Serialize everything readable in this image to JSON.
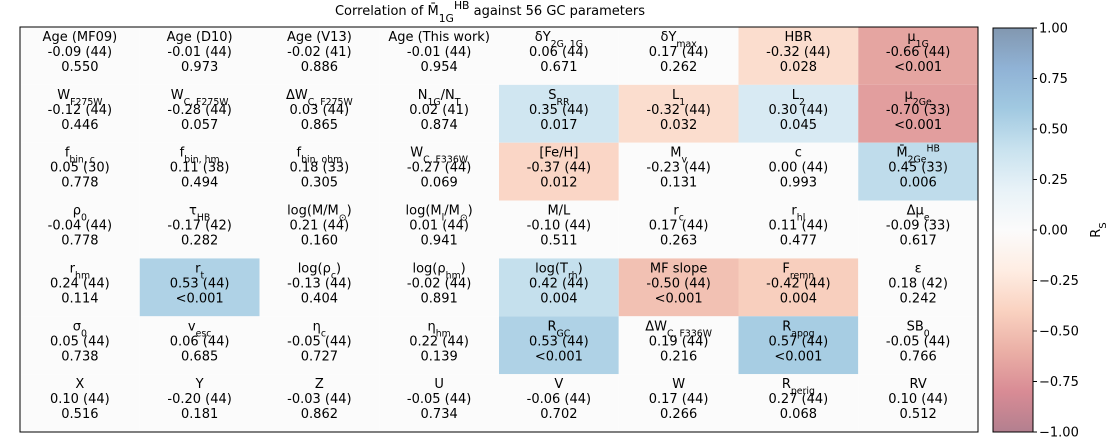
{
  "chart_data": {
    "type": "heatmap",
    "title": [
      "Correlation of M̄",
      {
        "sub": "1G"
      },
      {
        "sup": "HB"
      },
      " against 56 GC parameters"
    ],
    "colormap": [
      "#67001f",
      "#b2182b",
      "#d6604d",
      "#f4a582",
      "#fddbc7",
      "#f7f7f7",
      "#d1e5f0",
      "#92c5de",
      "#4393c3",
      "#2166ac",
      "#053061"
    ],
    "alpha": 0.5,
    "clim": [
      -1,
      1
    ],
    "cticks": [
      {
        "value": 1,
        "label": "1.00"
      },
      {
        "value": 0.75,
        "label": "0.75"
      },
      {
        "value": 0.5,
        "label": "0.50"
      },
      {
        "value": 0.25,
        "label": "0.25"
      },
      {
        "value": 0,
        "label": "0.00"
      },
      {
        "value": -0.25,
        "label": "−0.25"
      },
      {
        "value": -0.5,
        "label": "−0.50"
      },
      {
        "value": -0.75,
        "label": "−0.75"
      },
      {
        "value": -1,
        "label": "−1.00"
      }
    ],
    "colorbar_label": [
      "R",
      {
        "sub": "S"
      }
    ],
    "cells": [
      [
        {
          "label": [
            "Age (MF09)"
          ],
          "value": -0.09,
          "value_label": "-0.09 (44)",
          "p": "0.550",
          "significant": false
        },
        {
          "label": [
            "Age (D10)"
          ],
          "value": -0.01,
          "value_label": "-0.01 (44)",
          "p": "0.973",
          "significant": false
        },
        {
          "label": [
            "Age (V13)"
          ],
          "value": -0.02,
          "value_label": "-0.02 (41)",
          "p": "0.886",
          "significant": false
        },
        {
          "label": [
            "Age (This work)"
          ],
          "value": -0.01,
          "value_label": "-0.01 (44)",
          "p": "0.954",
          "significant": false
        },
        {
          "label": [
            "δY",
            {
              "sub": "2G, 1G"
            }
          ],
          "value": 0.06,
          "value_label": "0.06 (44)",
          "p": "0.671",
          "significant": false
        },
        {
          "label": [
            "δY",
            {
              "sub": "max"
            }
          ],
          "value": 0.17,
          "value_label": "0.17 (44)",
          "p": "0.262",
          "significant": false
        },
        {
          "label": [
            "HBR"
          ],
          "value": -0.32,
          "value_label": "-0.32 (44)",
          "p": "0.028",
          "significant": true
        },
        {
          "label": [
            "μ",
            {
              "sub": "1G"
            }
          ],
          "value": -0.66,
          "value_label": "-0.66 (44)",
          "p": "<0.001",
          "significant": true
        }
      ],
      [
        {
          "label": [
            "W",
            {
              "sub": "F275W"
            }
          ],
          "value": -0.12,
          "value_label": "-0.12 (44)",
          "p": "0.446",
          "significant": false
        },
        {
          "label": [
            "W",
            {
              "sub": "C, F275W"
            }
          ],
          "value": -0.28,
          "value_label": "-0.28 (44)",
          "p": "0.057",
          "significant": false
        },
        {
          "label": [
            "ΔW",
            {
              "sub": "C, F275W"
            }
          ],
          "value": 0.03,
          "value_label": "0.03 (44)",
          "p": "0.865",
          "significant": false
        },
        {
          "label": [
            "N",
            {
              "sub": "1G"
            },
            "/N",
            {
              "sub": "T"
            }
          ],
          "value": 0.02,
          "value_label": "0.02 (41)",
          "p": "0.874",
          "significant": false
        },
        {
          "label": [
            "S",
            {
              "sub": "RR"
            }
          ],
          "value": 0.35,
          "value_label": "0.35 (44)",
          "p": "0.017",
          "significant": true
        },
        {
          "label": [
            "L",
            {
              "sub": "1"
            }
          ],
          "value": -0.32,
          "value_label": "-0.32 (44)",
          "p": "0.032",
          "significant": true
        },
        {
          "label": [
            "L",
            {
              "sub": "2"
            }
          ],
          "value": 0.3,
          "value_label": "0.30 (44)",
          "p": "0.045",
          "significant": true
        },
        {
          "label": [
            "μ",
            {
              "sub": "2Ge"
            }
          ],
          "value": -0.7,
          "value_label": "-0.70 (33)",
          "p": "<0.001",
          "significant": true
        }
      ],
      [
        {
          "label": [
            "f",
            {
              "sub": "bin, c"
            }
          ],
          "value": 0.05,
          "value_label": "0.05 (30)",
          "p": "0.778",
          "significant": false
        },
        {
          "label": [
            "f",
            {
              "sub": "bin, hm"
            }
          ],
          "value": 0.11,
          "value_label": "0.11 (38)",
          "p": "0.494",
          "significant": false
        },
        {
          "label": [
            "f",
            {
              "sub": "bin, ohm"
            }
          ],
          "value": 0.18,
          "value_label": "0.18 (33)",
          "p": "0.305",
          "significant": false
        },
        {
          "label": [
            "W",
            {
              "sub": "C, F336W"
            }
          ],
          "value": -0.27,
          "value_label": "-0.27 (44)",
          "p": "0.069",
          "significant": false
        },
        {
          "label": [
            "[Fe/H]"
          ],
          "value": -0.37,
          "value_label": "-0.37 (44)",
          "p": "0.012",
          "significant": true
        },
        {
          "label": [
            "M",
            {
              "sub": "v"
            }
          ],
          "value": -0.23,
          "value_label": "-0.23 (44)",
          "p": "0.131",
          "significant": false
        },
        {
          "label": [
            "c"
          ],
          "value": 0.0,
          "value_label": "0.00 (44)",
          "p": "0.993",
          "significant": false
        },
        {
          "label": [
            "M̄",
            {
              "sub": "2Ge"
            },
            {
              "sup": "HB"
            }
          ],
          "value": 0.45,
          "value_label": "0.45 (33)",
          "p": "0.006",
          "significant": true
        }
      ],
      [
        {
          "label": [
            "ρ",
            {
              "sub": "0"
            }
          ],
          "value": -0.04,
          "value_label": "-0.04 (44)",
          "p": "0.778",
          "significant": false
        },
        {
          "label": [
            "τ",
            {
              "sub": "HB"
            }
          ],
          "value": -0.17,
          "value_label": "-0.17 (42)",
          "p": "0.282",
          "significant": false
        },
        {
          "label": [
            "log(M/M",
            {
              "sub": "⊙"
            },
            ")"
          ],
          "value": 0.21,
          "value_label": "0.21 (44)",
          "p": "0.160",
          "significant": false
        },
        {
          "label": [
            "log(M",
            {
              "sub": "l"
            },
            "/M",
            {
              "sub": "⊙"
            },
            ")"
          ],
          "value": 0.01,
          "value_label": "0.01 (44)",
          "p": "0.941",
          "significant": false
        },
        {
          "label": [
            "M/L"
          ],
          "value": -0.1,
          "value_label": "-0.10 (44)",
          "p": "0.511",
          "significant": false
        },
        {
          "label": [
            "r",
            {
              "sub": "c"
            }
          ],
          "value": 0.17,
          "value_label": "0.17 (44)",
          "p": "0.263",
          "significant": false
        },
        {
          "label": [
            "r",
            {
              "sub": "hl"
            }
          ],
          "value": 0.11,
          "value_label": "0.11 (44)",
          "p": "0.477",
          "significant": false
        },
        {
          "label": [
            "Δμ",
            {
              "sub": "e"
            }
          ],
          "value": -0.09,
          "value_label": "-0.09 (33)",
          "p": "0.617",
          "significant": false
        }
      ],
      [
        {
          "label": [
            "r",
            {
              "sub": "hm"
            }
          ],
          "value": 0.24,
          "value_label": "0.24 (44)",
          "p": "0.114",
          "significant": false
        },
        {
          "label": [
            "r",
            {
              "sub": "t"
            }
          ],
          "value": 0.53,
          "value_label": "0.53 (44)",
          "p": "<0.001",
          "significant": true
        },
        {
          "label": [
            "log(ρ",
            {
              "sub": "c"
            },
            ")"
          ],
          "value": -0.13,
          "value_label": "-0.13 (44)",
          "p": "0.404",
          "significant": false
        },
        {
          "label": [
            "log(ρ",
            {
              "sub": "hm"
            },
            ")"
          ],
          "value": -0.02,
          "value_label": "-0.02 (44)",
          "p": "0.891",
          "significant": false
        },
        {
          "label": [
            "log(T",
            {
              "sub": "rh"
            },
            ")"
          ],
          "value": 0.42,
          "value_label": "0.42 (44)",
          "p": "0.004",
          "significant": true
        },
        {
          "label": [
            "MF slope"
          ],
          "value": -0.5,
          "value_label": "-0.50 (44)",
          "p": "<0.001",
          "significant": true
        },
        {
          "label": [
            "F",
            {
              "sub": "remn"
            }
          ],
          "value": -0.42,
          "value_label": "-0.42 (44)",
          "p": "0.004",
          "significant": true
        },
        {
          "label": [
            "ε"
          ],
          "value": 0.18,
          "value_label": "0.18 (42)",
          "p": "0.242",
          "significant": false
        }
      ],
      [
        {
          "label": [
            "σ",
            {
              "sub": "0"
            }
          ],
          "value": 0.05,
          "value_label": "0.05 (44)",
          "p": "0.738",
          "significant": false
        },
        {
          "label": [
            "v",
            {
              "sub": "esc"
            }
          ],
          "value": 0.06,
          "value_label": "0.06 (44)",
          "p": "0.685",
          "significant": false
        },
        {
          "label": [
            "η",
            {
              "sub": "c"
            }
          ],
          "value": -0.05,
          "value_label": "-0.05 (44)",
          "p": "0.727",
          "significant": false
        },
        {
          "label": [
            "η",
            {
              "sub": "hm"
            }
          ],
          "value": 0.22,
          "value_label": "0.22 (44)",
          "p": "0.139",
          "significant": false
        },
        {
          "label": [
            "R",
            {
              "sub": "GC"
            }
          ],
          "value": 0.53,
          "value_label": "0.53 (44)",
          "p": "<0.001",
          "significant": true
        },
        {
          "label": [
            "ΔW",
            {
              "sub": "C, F336W"
            }
          ],
          "value": 0.19,
          "value_label": "0.19 (44)",
          "p": "0.216",
          "significant": false
        },
        {
          "label": [
            "R",
            {
              "sub": "apog"
            }
          ],
          "value": 0.57,
          "value_label": "0.57 (44)",
          "p": "<0.001",
          "significant": true
        },
        {
          "label": [
            "SB",
            {
              "sub": "0"
            }
          ],
          "value": -0.05,
          "value_label": "-0.05 (44)",
          "p": "0.766",
          "significant": false
        }
      ],
      [
        {
          "label": [
            "X"
          ],
          "value": 0.1,
          "value_label": "0.10 (44)",
          "p": "0.516",
          "significant": false
        },
        {
          "label": [
            "Y"
          ],
          "value": -0.2,
          "value_label": "-0.20 (44)",
          "p": "0.181",
          "significant": false
        },
        {
          "label": [
            "Z"
          ],
          "value": -0.03,
          "value_label": "-0.03 (44)",
          "p": "0.862",
          "significant": false
        },
        {
          "label": [
            "U"
          ],
          "value": -0.05,
          "value_label": "-0.05 (44)",
          "p": "0.734",
          "significant": false
        },
        {
          "label": [
            "V"
          ],
          "value": -0.06,
          "value_label": "-0.06 (44)",
          "p": "0.702",
          "significant": false
        },
        {
          "label": [
            "W"
          ],
          "value": 0.17,
          "value_label": "0.17 (44)",
          "p": "0.266",
          "significant": false
        },
        {
          "label": [
            "R",
            {
              "sub": "perig"
            }
          ],
          "value": 0.27,
          "value_label": "0.27 (44)",
          "p": "0.068",
          "significant": false
        },
        {
          "label": [
            "RV"
          ],
          "value": 0.1,
          "value_label": "0.10 (44)",
          "p": "0.512",
          "significant": false
        }
      ]
    ]
  }
}
